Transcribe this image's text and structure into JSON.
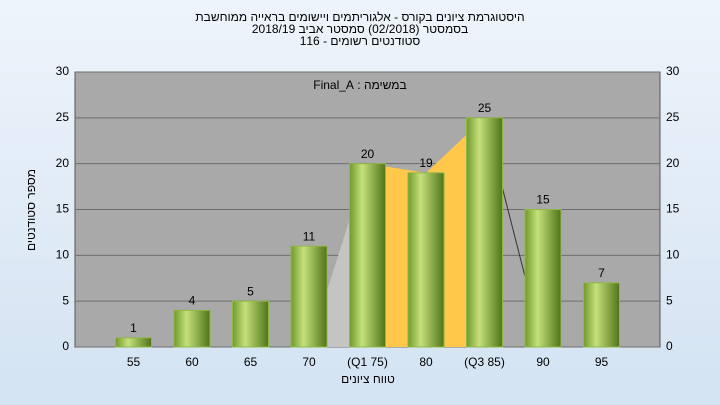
{
  "chart_data": {
    "type": "bar",
    "title": [
      "היסטוגרמת ציונים בקורס - אלגוריתמים ויישומים בראייה ממוחשבת",
      "בסמסטר (02/2018) סמסטר אביב 2018/19",
      "סטודנטים רשומים - 116"
    ],
    "annotation": "במשימה : Final_A",
    "x_label": "טווח ציונים",
    "y_label": "מספר סטודנטים",
    "categories": [
      "55",
      "60",
      "65",
      "70",
      "(Q1 75)",
      "80",
      "(Q3 85)",
      "90",
      "95"
    ],
    "values": [
      1,
      4,
      5,
      11,
      20,
      19,
      25,
      15,
      7
    ],
    "color": "#8fb845",
    "ylim": [
      0,
      30
    ],
    "yticks": [
      0,
      5,
      10,
      15,
      20,
      25,
      30
    ],
    "grid": true
  }
}
